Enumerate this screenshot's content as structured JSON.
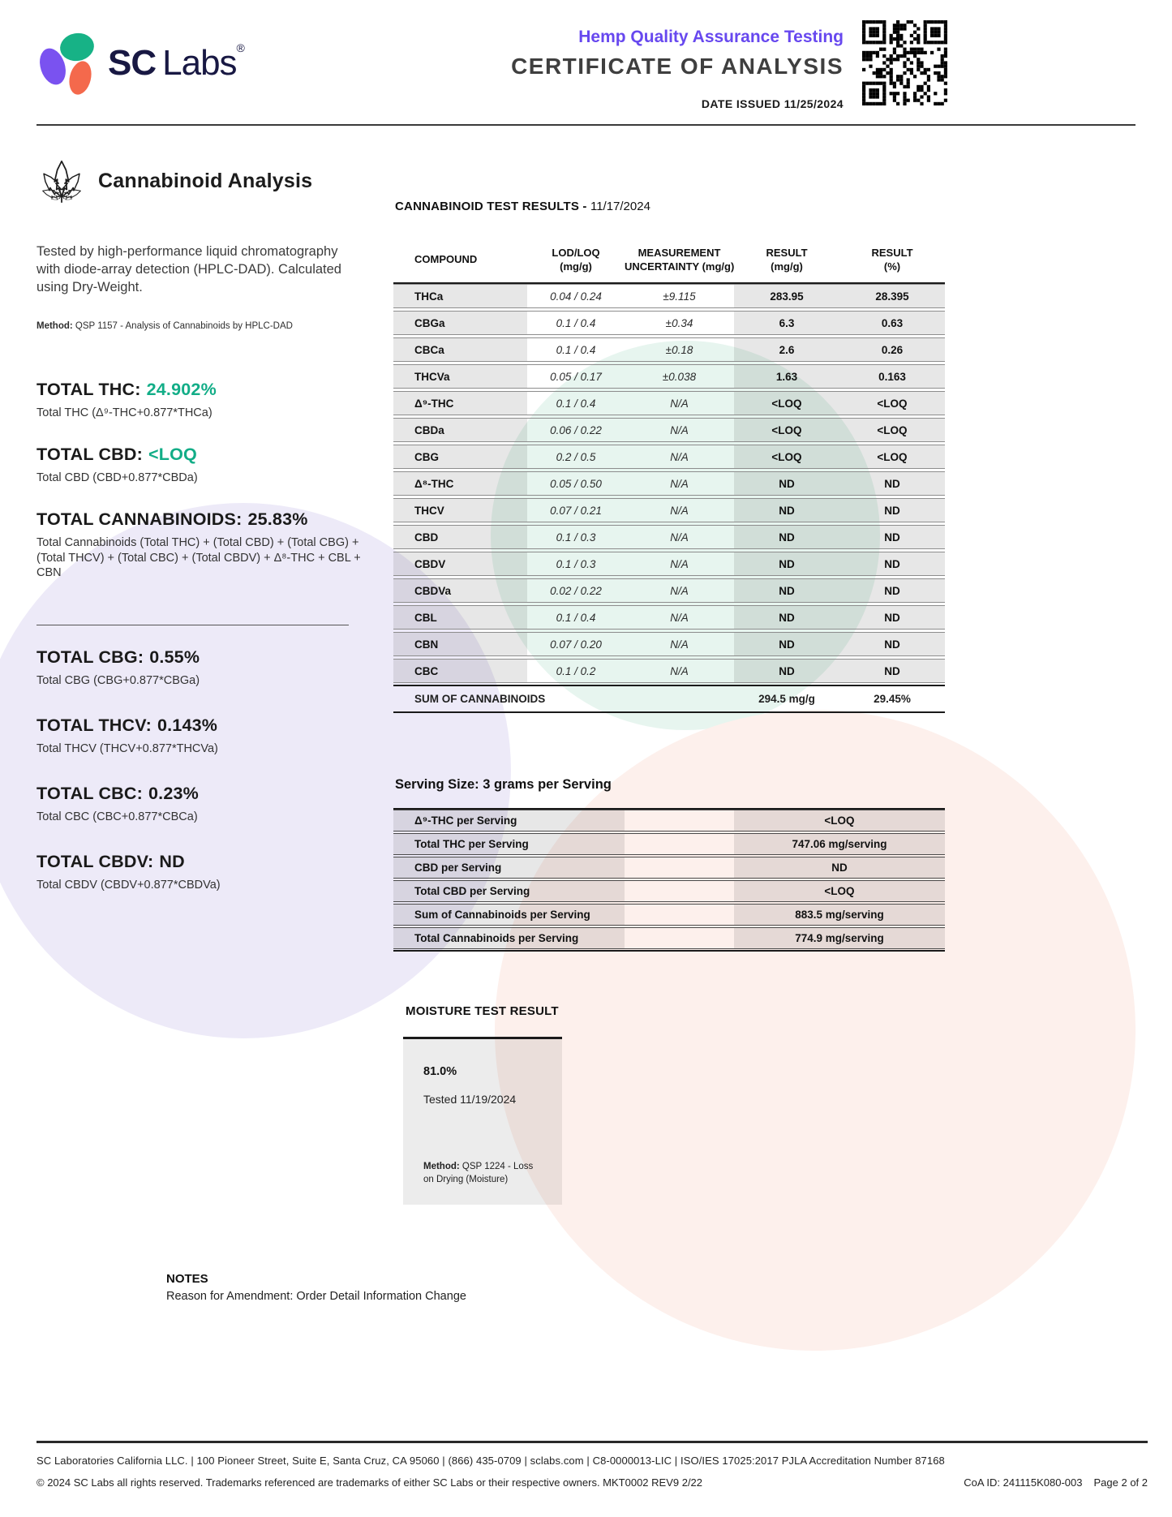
{
  "colors": {
    "accent_green": "#12ad87",
    "accent_purple": "#6748ef",
    "brand_navy": "#181843",
    "logo_purple": "#7a52f0",
    "logo_green": "#17b286",
    "logo_orange": "#f4694c"
  },
  "header": {
    "brand_sc": "SC",
    "brand_labs": "Labs",
    "brand_reg": "®",
    "subtitle": "Hemp Quality Assurance Testing",
    "title": "CERTIFICATE OF ANALYSIS",
    "date_issued": "DATE ISSUED 11/25/2024"
  },
  "section": {
    "title": "Cannabinoid Analysis",
    "description": "Tested by high-performance liquid chromatography with diode-array detection (HPLC-DAD). Calculated using Dry-Weight.",
    "method_label": "Method:",
    "method": "QSP 1157 - Analysis of Cannabinoids by HPLC-DAD"
  },
  "totals_primary": [
    {
      "label": "TOTAL THC:",
      "value": "24.902%",
      "green": true,
      "sub": "Total THC (Δ⁹-THC+0.877*THCa)"
    },
    {
      "label": "TOTAL CBD:",
      "value": "<LOQ",
      "green": true,
      "sub": "Total CBD (CBD+0.877*CBDa)"
    },
    {
      "label": "TOTAL CANNABINOIDS:",
      "value": "25.83%",
      "green": false,
      "sub": "Total Cannabinoids (Total THC) + (Total CBD) + (Total CBG) + (Total THCV) + (Total CBC) + (Total CBDV) + Δ⁸-THC + CBL + CBN"
    }
  ],
  "totals_secondary": [
    {
      "label": "TOTAL CBG:",
      "value": "0.55%",
      "green": false,
      "sub": "Total CBG (CBG+0.877*CBGa)"
    },
    {
      "label": "TOTAL THCV:",
      "value": "0.143%",
      "green": false,
      "sub": "Total THCV (THCV+0.877*THCVa)"
    },
    {
      "label": "TOTAL CBC:",
      "value": "0.23%",
      "green": false,
      "sub": "Total CBC (CBC+0.877*CBCa)"
    },
    {
      "label": "TOTAL CBDV:",
      "value": "ND",
      "green": false,
      "sub": "Total CBDV (CBDV+0.877*CBDVa)"
    }
  ],
  "results": {
    "title_main": "CANNABINOID TEST RESULTS - ",
    "title_date": "11/17/2024",
    "columns": [
      {
        "l1": "COMPOUND",
        "l2": ""
      },
      {
        "l1": "LOD/LOQ",
        "l2": "(mg/g)"
      },
      {
        "l1": "MEASUREMENT",
        "l2": "UNCERTAINTY (mg/g)"
      },
      {
        "l1": "RESULT",
        "l2": "(mg/g)"
      },
      {
        "l1": "RESULT",
        "l2": "(%)"
      }
    ],
    "rows": [
      {
        "c": "THCa",
        "lod": "0.04 / 0.24",
        "unc": "±9.115",
        "mg": "283.95",
        "pct": "28.395"
      },
      {
        "c": "CBGa",
        "lod": "0.1 / 0.4",
        "unc": "±0.34",
        "mg": "6.3",
        "pct": "0.63"
      },
      {
        "c": "CBCa",
        "lod": "0.1 / 0.4",
        "unc": "±0.18",
        "mg": "2.6",
        "pct": "0.26"
      },
      {
        "c": "THCVa",
        "lod": "0.05 / 0.17",
        "unc": "±0.038",
        "mg": "1.63",
        "pct": "0.163"
      },
      {
        "c": "Δ⁹-THC",
        "lod": "0.1 / 0.4",
        "unc": "N/A",
        "mg": "<LOQ",
        "pct": "<LOQ"
      },
      {
        "c": "CBDa",
        "lod": "0.06 / 0.22",
        "unc": "N/A",
        "mg": "<LOQ",
        "pct": "<LOQ"
      },
      {
        "c": "CBG",
        "lod": "0.2 / 0.5",
        "unc": "N/A",
        "mg": "<LOQ",
        "pct": "<LOQ"
      },
      {
        "c": "Δ⁸-THC",
        "lod": "0.05 / 0.50",
        "unc": "N/A",
        "mg": "ND",
        "pct": "ND"
      },
      {
        "c": "THCV",
        "lod": "0.07 / 0.21",
        "unc": "N/A",
        "mg": "ND",
        "pct": "ND"
      },
      {
        "c": "CBD",
        "lod": "0.1 / 0.3",
        "unc": "N/A",
        "mg": "ND",
        "pct": "ND"
      },
      {
        "c": "CBDV",
        "lod": "0.1 / 0.3",
        "unc": "N/A",
        "mg": "ND",
        "pct": "ND"
      },
      {
        "c": "CBDVa",
        "lod": "0.02 / 0.22",
        "unc": "N/A",
        "mg": "ND",
        "pct": "ND"
      },
      {
        "c": "CBL",
        "lod": "0.1 / 0.4",
        "unc": "N/A",
        "mg": "ND",
        "pct": "ND"
      },
      {
        "c": "CBN",
        "lod": "0.07 / 0.20",
        "unc": "N/A",
        "mg": "ND",
        "pct": "ND"
      },
      {
        "c": "CBC",
        "lod": "0.1 / 0.2",
        "unc": "N/A",
        "mg": "ND",
        "pct": "ND"
      }
    ],
    "sum_label": "SUM OF CANNABINOIDS",
    "sum_mg": "294.5 mg/g",
    "sum_pct": "29.45%"
  },
  "serving": {
    "title": "Serving Size: 3 grams per Serving",
    "rows": [
      {
        "label": "Δ⁹-THC per Serving",
        "value": "<LOQ"
      },
      {
        "label": "Total THC per Serving",
        "value": "747.06 mg/serving"
      },
      {
        "label": "CBD per Serving",
        "value": "ND"
      },
      {
        "label": "Total CBD per Serving",
        "value": "<LOQ"
      },
      {
        "label": "Sum of Cannabinoids per Serving",
        "value": "883.5 mg/serving"
      },
      {
        "label": "Total Cannabinoids per Serving",
        "value": "774.9 mg/serving"
      }
    ]
  },
  "moisture": {
    "title": "MOISTURE TEST RESULT",
    "value": "81.0%",
    "tested": "Tested 11/19/2024",
    "method_label": "Method:",
    "method": "QSP 1224 - Loss on Drying (Moisture)"
  },
  "notes": {
    "title": "NOTES",
    "body": "Reason for Amendment: Order Detail Information Change"
  },
  "footer": {
    "line1": "SC Laboratories California LLC. | 100 Pioneer Street, Suite E, Santa Cruz, CA 95060 | (866) 435-0709 | sclabs.com | C8-0000013-LIC | ISO/IES 17025:2017 PJLA Accreditation Number 87168",
    "line2": "© 2024 SC Labs all rights reserved. Trademarks referenced are trademarks of either SC Labs or their respective owners. MKT0002 REV9 2/22",
    "coa_id": "CoA ID: 241115K080-003",
    "page": "Page 2 of 2"
  }
}
